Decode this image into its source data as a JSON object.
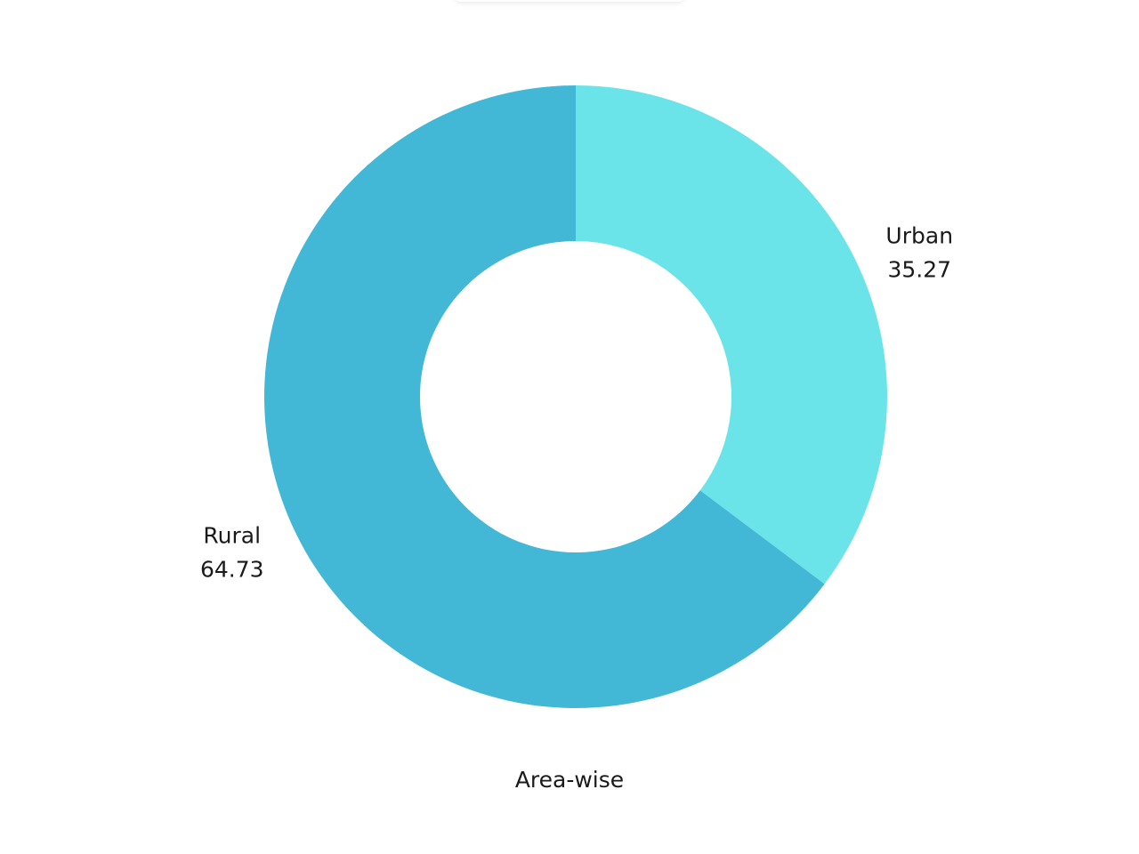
{
  "chart_data": {
    "type": "pie",
    "style": "donut",
    "categories": [
      "Rural",
      "Urban"
    ],
    "values": [
      64.73,
      35.27
    ],
    "colors": [
      "#43b8d6",
      "#6ae4e8"
    ],
    "xlabel": "Area-wise"
  }
}
